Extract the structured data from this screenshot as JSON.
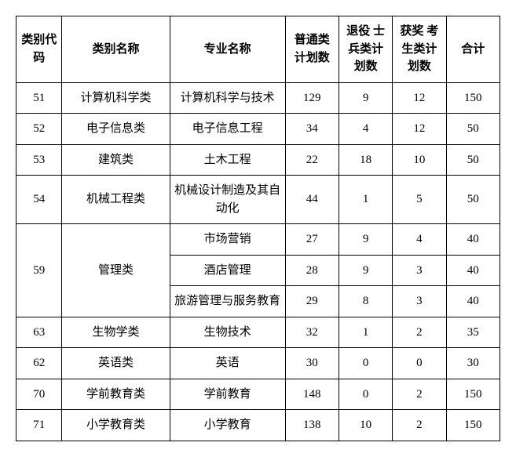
{
  "table": {
    "headers": {
      "code": "类别代码",
      "catname": "类别名称",
      "major": "专业名称",
      "normal": "普通类计划数",
      "veteran": "退役 士兵类计划数",
      "award": "获奖 考生类计划数",
      "total": "合计"
    },
    "rows": [
      {
        "code": "51",
        "catname": "计算机科学类",
        "major": "计算机科学与技术",
        "normal": "129",
        "veteran": "9",
        "award": "12",
        "total": "150",
        "rowspan_code": 1,
        "rowspan_cat": 1
      },
      {
        "code": "52",
        "catname": "电子信息类",
        "major": "电子信息工程",
        "normal": "34",
        "veteran": "4",
        "award": "12",
        "total": "50",
        "rowspan_code": 1,
        "rowspan_cat": 1
      },
      {
        "code": "53",
        "catname": "建筑类",
        "major": "土木工程",
        "normal": "22",
        "veteran": "18",
        "award": "10",
        "total": "50",
        "rowspan_code": 1,
        "rowspan_cat": 1
      },
      {
        "code": "54",
        "catname": "机械工程类",
        "major": "机械设计制造及其自动化",
        "normal": "44",
        "veteran": "1",
        "award": "5",
        "total": "50",
        "rowspan_code": 1,
        "rowspan_cat": 1
      },
      {
        "code": "59",
        "catname": "管理类",
        "major": "市场营销",
        "normal": "27",
        "veteran": "9",
        "award": "4",
        "total": "40",
        "rowspan_code": 3,
        "rowspan_cat": 3
      },
      {
        "code": "",
        "catname": "",
        "major": "酒店管理",
        "normal": "28",
        "veteran": "9",
        "award": "3",
        "total": "40",
        "rowspan_code": 0,
        "rowspan_cat": 0
      },
      {
        "code": "",
        "catname": "",
        "major": "旅游管理与服务教育",
        "normal": "29",
        "veteran": "8",
        "award": "3",
        "total": "40",
        "rowspan_code": 0,
        "rowspan_cat": 0
      },
      {
        "code": "63",
        "catname": "生物学类",
        "major": "生物技术",
        "normal": "32",
        "veteran": "1",
        "award": "2",
        "total": "35",
        "rowspan_code": 1,
        "rowspan_cat": 1
      },
      {
        "code": "62",
        "catname": "英语类",
        "major": "英语",
        "normal": "30",
        "veteran": "0",
        "award": "0",
        "total": "30",
        "rowspan_code": 1,
        "rowspan_cat": 1
      },
      {
        "code": "70",
        "catname": "学前教育类",
        "major": "学前教育",
        "normal": "148",
        "veteran": "0",
        "award": "2",
        "total": "150",
        "rowspan_code": 1,
        "rowspan_cat": 1
      },
      {
        "code": "71",
        "catname": "小学教育类",
        "major": "小学教育",
        "normal": "138",
        "veteran": "10",
        "award": "2",
        "total": "150",
        "rowspan_code": 1,
        "rowspan_cat": 1
      }
    ]
  }
}
